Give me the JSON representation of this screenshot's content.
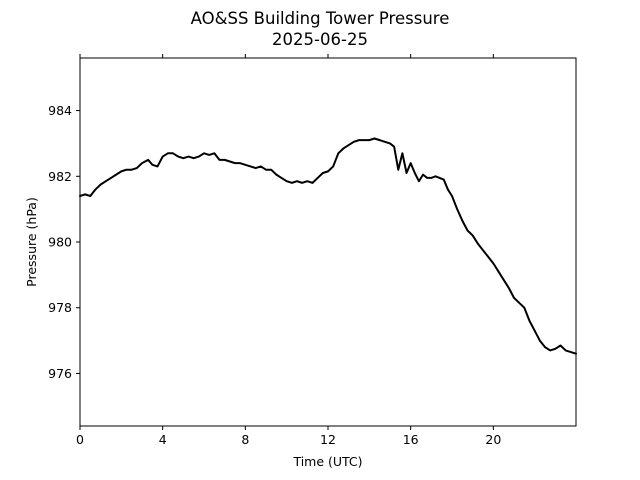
{
  "chart_data": {
    "type": "line",
    "title": "AO&SS Building Tower Pressure",
    "subtitle": "2025-06-25",
    "xlabel": "Time (UTC)",
    "ylabel": "Pressure (hPa)",
    "xlim": [
      0,
      24
    ],
    "ylim": [
      974.4,
      985.6
    ],
    "xticks": [
      0,
      4,
      8,
      12,
      16,
      20
    ],
    "xtick_labels": [
      "0",
      "4",
      "8",
      "12",
      "16",
      "20"
    ],
    "yticks": [
      976,
      978,
      980,
      982,
      984
    ],
    "ytick_labels": [
      "976",
      "978",
      "980",
      "982",
      "984"
    ],
    "grid": false,
    "line_color": "#000000",
    "series": [
      {
        "x": [
          0,
          0.25,
          0.5,
          0.75,
          1.0,
          1.25,
          1.5,
          1.75,
          2.0,
          2.25,
          2.5,
          2.75,
          3.0,
          3.15,
          3.3,
          3.5,
          3.75,
          4.0,
          4.25,
          4.5,
          4.75,
          5.0,
          5.25,
          5.5,
          5.75,
          6.0,
          6.25,
          6.5,
          6.75,
          7.0,
          7.25,
          7.5,
          7.75,
          8.0,
          8.25,
          8.5,
          8.75,
          9.0,
          9.25,
          9.5,
          9.75,
          10.0,
          10.25,
          10.5,
          10.75,
          11.0,
          11.25,
          11.5,
          11.75,
          12.0,
          12.25,
          12.5,
          12.75,
          13.0,
          13.25,
          13.5,
          13.75,
          14.0,
          14.25,
          14.5,
          14.75,
          15.0,
          15.2,
          15.4,
          15.6,
          15.8,
          16.0,
          16.2,
          16.4,
          16.6,
          16.8,
          17.0,
          17.2,
          17.4,
          17.6,
          17.8,
          18.0,
          18.25,
          18.5,
          18.75,
          19.0,
          19.25,
          19.5,
          19.75,
          20.0,
          20.25,
          20.5,
          20.75,
          21.0,
          21.25,
          21.5,
          21.75,
          22.0,
          22.25,
          22.5,
          22.75,
          23.0,
          23.25,
          23.5,
          23.75,
          24.0
        ],
        "y": [
          981.4,
          981.45,
          981.4,
          981.6,
          981.75,
          981.85,
          981.95,
          982.05,
          982.15,
          982.2,
          982.2,
          982.25,
          982.4,
          982.45,
          982.5,
          982.35,
          982.3,
          982.6,
          982.7,
          982.7,
          982.6,
          982.55,
          982.6,
          982.55,
          982.6,
          982.7,
          982.65,
          982.7,
          982.5,
          982.5,
          982.45,
          982.4,
          982.4,
          982.35,
          982.3,
          982.25,
          982.3,
          982.2,
          982.2,
          982.05,
          981.95,
          981.85,
          981.8,
          981.85,
          981.8,
          981.85,
          981.8,
          981.95,
          982.1,
          982.15,
          982.3,
          982.7,
          982.85,
          982.95,
          983.05,
          983.1,
          983.1,
          983.1,
          983.15,
          983.1,
          983.05,
          983.0,
          982.9,
          982.2,
          982.7,
          982.1,
          982.4,
          982.1,
          981.85,
          982.05,
          981.95,
          981.95,
          982.0,
          981.95,
          981.9,
          981.6,
          981.4,
          981.0,
          980.65,
          980.35,
          980.2,
          979.95,
          979.75,
          979.55,
          979.35,
          979.1,
          978.85,
          978.6,
          978.3,
          978.15,
          978.0,
          977.6,
          977.3,
          977.0,
          976.8,
          976.7,
          976.75,
          976.85,
          976.7,
          976.65,
          976.6
        ]
      }
    ]
  }
}
